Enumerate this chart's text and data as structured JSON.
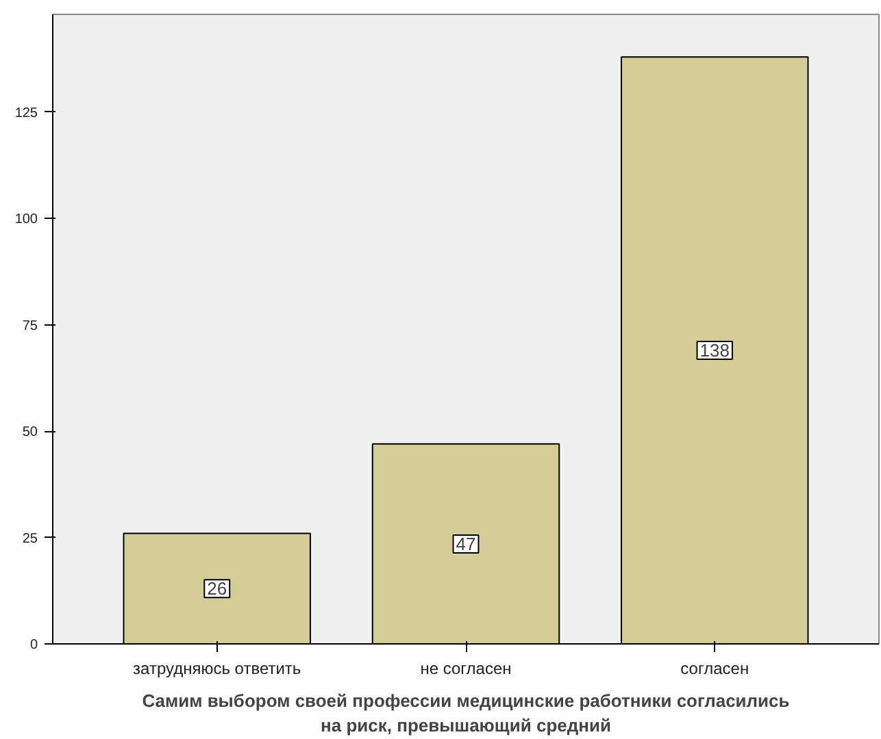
{
  "chart_data": {
    "type": "bar",
    "xlabel": "Самим выбором своей профессии медицинские работники согласились\nна риск, превышающий средний",
    "categories": [
      "затрудняюсь ответить",
      "не согласен",
      "согласен"
    ],
    "values": [
      26,
      47,
      138
    ],
    "color": "#d3ce96",
    "ylim": [
      0,
      148
    ],
    "yticks": [
      0,
      25,
      50,
      75,
      100,
      125
    ],
    "data_labels": true,
    "grid": false
  }
}
